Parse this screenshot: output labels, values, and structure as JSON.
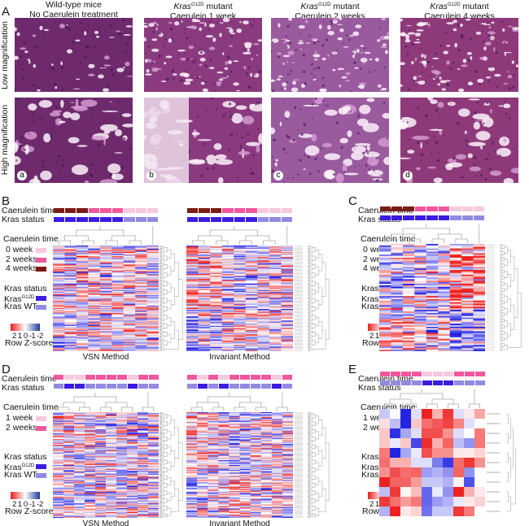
{
  "panelA": {
    "label": "A",
    "row_labels": [
      "Low magnification",
      "High magnification"
    ],
    "columns": [
      {
        "title1": "Wild-type mice",
        "title2": "No Caerulein treatment",
        "tag": "a",
        "tone": "#6e2a6c"
      },
      {
        "gene": "Kras",
        "superscript": "G12D",
        "suffix": " mutant",
        "title2": "Caerulein 1 week",
        "tag": "b",
        "tone": "#8a3a7e"
      },
      {
        "gene": "Kras",
        "superscript": "G12D",
        "suffix": " mutant",
        "title2": "Caerulein 2 weeks",
        "tag": "c",
        "tone": "#9a5a9e"
      },
      {
        "gene": "Kras",
        "superscript": "G12D",
        "suffix": " mutant",
        "title2": "Caerulein 4 weeks",
        "tag": "d",
        "tone": "#8e3a7a"
      }
    ]
  },
  "annotations": {
    "caerulein_label": "Caerulein time",
    "kras_label": "Kras status"
  },
  "legend": {
    "caerulein_title": "Caerulein time",
    "weeks_BC": [
      "0 week",
      "2 weeks",
      "4 weeks"
    ],
    "weeks_DE": [
      "1 week",
      "2 weeks"
    ],
    "kras_title": "Kras status",
    "kras_mut_gene": "Kras",
    "kras_mut_sup": "G12D",
    "kras_wt": "Kras WT",
    "zscore_ticks": "2 1 0 -1 -2",
    "zscore_title": "Row Z-score"
  },
  "colors": {
    "w0": "#f6c9dd",
    "w1": "#f6c9dd",
    "w2": "#f2569c",
    "w4": "#7b1c14",
    "mut": "#3a1de0",
    "wt": "#928ae2",
    "high": "#ee2220",
    "low": "#2424e4"
  },
  "panels": {
    "B": "B",
    "C": "C",
    "D": "D",
    "E": "E"
  },
  "methods": {
    "vsn": "VSN Method",
    "invariant": "Invariant Method"
  },
  "chart_data": [
    {
      "type": "heatmap",
      "panel": "B",
      "method": "VSN Method",
      "n_rows": 100,
      "caerulein": [
        "w4",
        "w4",
        "w4",
        "w2",
        "w2",
        "w2",
        "w0",
        "w0",
        "w0"
      ],
      "kras": [
        "mut",
        "mut",
        "mut",
        "mut",
        "mut",
        "mut",
        "wt",
        "wt",
        "wt"
      ],
      "column_bias": [
        0.2,
        0.1,
        0.1,
        0,
        0,
        0,
        -0.1,
        -0.1,
        -0.1
      ],
      "seed": 11
    },
    {
      "type": "heatmap",
      "panel": "B",
      "method": "Invariant Method",
      "n_rows": 100,
      "caerulein": [
        "w4",
        "w4",
        "w4",
        "w2",
        "w2",
        "w2",
        "w0",
        "w0",
        "w0"
      ],
      "kras": [
        "mut",
        "mut",
        "mut",
        "mut",
        "mut",
        "mut",
        "wt",
        "wt",
        "wt"
      ],
      "column_bias": [
        0.5,
        0.3,
        0.4,
        -0.2,
        -0.5,
        -0.3,
        -0.1,
        0,
        0.1
      ],
      "seed": 23
    },
    {
      "type": "heatmap",
      "panel": "C",
      "method": "",
      "n_rows": 70,
      "caerulein": [
        "w4",
        "w4",
        "w4",
        "w2",
        "w2",
        "w2",
        "w0",
        "w0",
        "w0"
      ],
      "kras": [
        "mut",
        "mut",
        "mut",
        "mut",
        "mut",
        "mut",
        "wt",
        "wt",
        "wt"
      ],
      "column_bias": [
        -0.4,
        -0.4,
        -0.2,
        0,
        0,
        -0.1,
        0.9,
        0.9,
        0.9
      ],
      "seed": 37
    },
    {
      "type": "heatmap",
      "panel": "D",
      "method": "VSN Method",
      "n_rows": 110,
      "caerulein": [
        "w2",
        "w1",
        "w1",
        "w2",
        "w2",
        "w2",
        "w2",
        "w1",
        "w2",
        "w2"
      ],
      "kras": [
        "wt",
        "mut",
        "mut",
        "wt",
        "wt",
        "wt",
        "wt",
        "mut",
        "wt",
        "wt"
      ],
      "column_bias": [
        0.3,
        0,
        0,
        0,
        -0.1,
        0,
        0,
        -0.1,
        0,
        0
      ],
      "seed": 41
    },
    {
      "type": "heatmap",
      "panel": "D",
      "method": "Invariant Method",
      "n_rows": 110,
      "caerulein": [
        "w2",
        "w1",
        "w2",
        "w1",
        "w2",
        "w2",
        "w2",
        "w2",
        "w1",
        "w2"
      ],
      "kras": [
        "wt",
        "mut",
        "wt",
        "mut",
        "wt",
        "wt",
        "wt",
        "wt",
        "mut",
        "wt"
      ],
      "column_bias": [
        0.6,
        0.3,
        0.2,
        -0.2,
        -0.5,
        -0.5,
        0,
        0,
        0,
        0
      ],
      "seed": 53
    },
    {
      "type": "heatmap",
      "panel": "E",
      "method": "",
      "n_rows": 11,
      "caerulein": [
        "w2",
        "w2",
        "w2",
        "w2",
        "w1",
        "w1",
        "w1",
        "w2",
        "w2",
        "w2"
      ],
      "kras": [
        "wt",
        "wt",
        "wt",
        "wt",
        "mut",
        "mut",
        "mut",
        "wt",
        "wt",
        "wt"
      ],
      "values": [
        [
          -0.5,
          0,
          -2,
          -0.3,
          2,
          0.7,
          1.8,
          -0.3,
          0.2,
          0.8
        ],
        [
          0.3,
          -0.6,
          -2,
          0.5,
          1.3,
          1.5,
          1.7,
          1.1,
          -0.3,
          0
        ],
        [
          0.5,
          -1.9,
          -0.8,
          -0.3,
          1.6,
          1.6,
          1.0,
          -0.3,
          0,
          1.2
        ],
        [
          0.5,
          -0.2,
          0.5,
          -1.7,
          1.9,
          0.7,
          1.4,
          -0.6,
          -1.0,
          1.2
        ],
        [
          1.2,
          -2,
          -0.8,
          -0.2,
          1.6,
          1.0,
          1.0,
          0.2,
          0.2,
          0.4
        ],
        [
          1.3,
          0.7,
          0.7,
          -0.3,
          -0.3,
          -1.2,
          -1.8,
          1.3,
          1.8,
          1.0
        ],
        [
          1.0,
          1.6,
          1.3,
          1.4,
          -0.9,
          -0.7,
          -1.0,
          1.4,
          -1.0,
          0
        ],
        [
          2,
          1.4,
          1.4,
          0.9,
          -0.5,
          -0.5,
          -0.7,
          0.1,
          -1.6,
          0
        ],
        [
          -0.6,
          1.8,
          0.1,
          0.6,
          -1.4,
          -0.2,
          -1.0,
          2,
          0.7,
          0.2
        ],
        [
          1.8,
          1.3,
          0.9,
          1.2,
          -1.4,
          -0.9,
          -0.7,
          -0.2,
          0.2,
          0.4
        ],
        [
          -0.7,
          2,
          0.2,
          0.4,
          -1.3,
          -0.5,
          -0.5,
          1.8,
          1.2,
          0
        ]
      ]
    }
  ]
}
